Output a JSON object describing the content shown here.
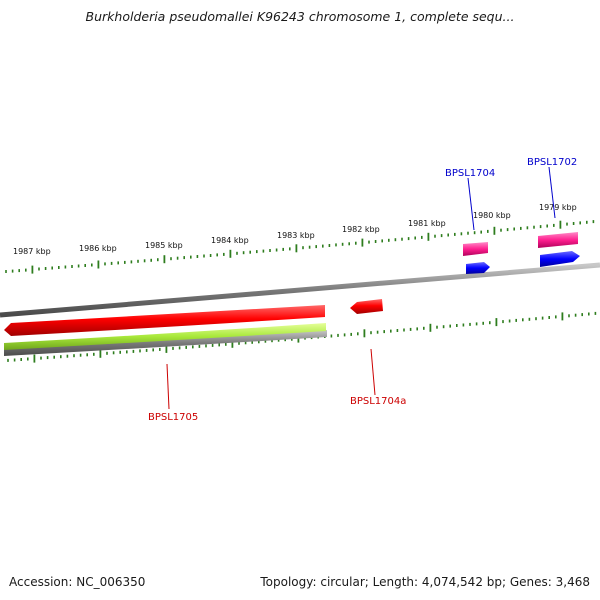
{
  "title": "Burkholderia pseudomallei K96243 chromosome 1, complete sequ...",
  "footer": {
    "accession": "Accession: NC_006350",
    "summary": "Topology: circular; Length: 4,074,542 bp; Genes: 3,468"
  },
  "scale_labels": [
    "1987 kbp",
    "1986 kbp",
    "1985 kbp",
    "1984 kbp",
    "1983 kbp",
    "1982 kbp",
    "1981 kbp",
    "1980 kbp",
    "1979 kbp"
  ],
  "genes": [
    {
      "label": "BPSL1704",
      "strand": "forward",
      "color": "#0000cc"
    },
    {
      "label": "BPSL1702",
      "strand": "forward",
      "color": "#0000cc"
    },
    {
      "label": "BPSL1705",
      "strand": "reverse",
      "color": "#cc0000"
    },
    {
      "label": "BPSL1704a",
      "strand": "reverse",
      "color": "#cc0000"
    }
  ],
  "colors": {
    "backbone": "#808080",
    "tick": "#2e7d1e",
    "forward_cds": "#0000ff",
    "forward_gene": "#e8308a",
    "reverse_cds": "#ff0000",
    "reverse_gene": "#a8e83a",
    "reverse_gene_shadow": "#8a8a8a"
  }
}
